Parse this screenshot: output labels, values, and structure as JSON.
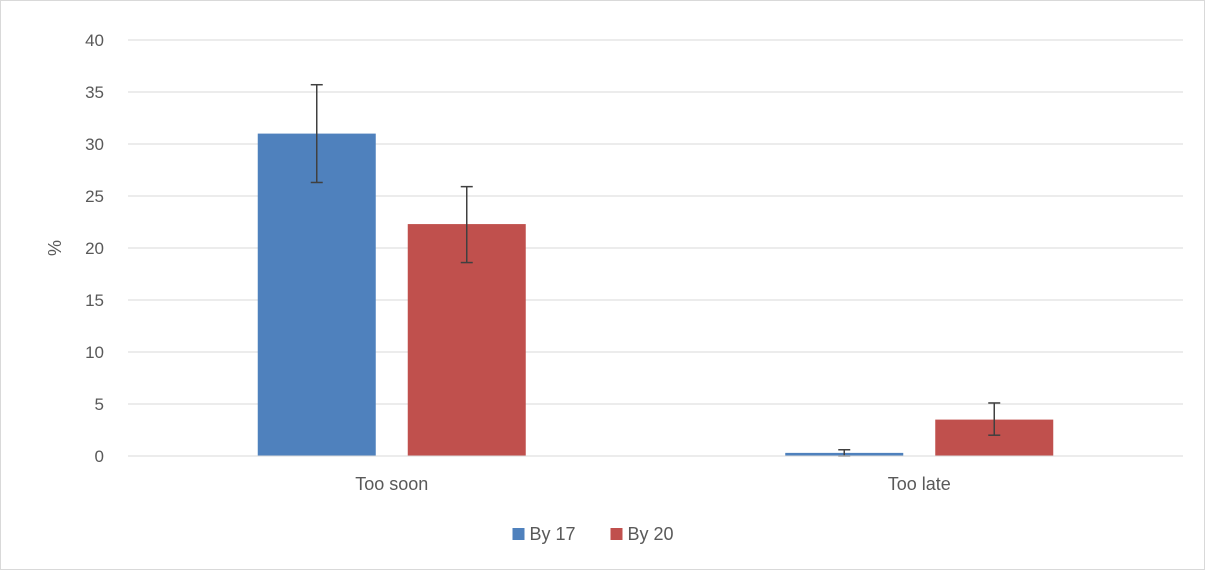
{
  "chart_data": {
    "type": "bar",
    "title": "",
    "xlabel": "",
    "ylabel": "%",
    "ylim": [
      0,
      40
    ],
    "yticks": [
      0,
      5,
      10,
      15,
      20,
      25,
      30,
      35,
      40
    ],
    "grid": true,
    "legend_position": "bottom",
    "categories": [
      "Too soon",
      "Too late"
    ],
    "series": [
      {
        "name": "By 17",
        "color": "#4f81bd",
        "values": [
          31.0,
          0.3
        ],
        "error_low": [
          26.3,
          0.0
        ],
        "error_high": [
          35.7,
          0.6
        ]
      },
      {
        "name": "By 20",
        "color": "#c0504d",
        "values": [
          22.3,
          3.5
        ],
        "error_low": [
          18.6,
          2.0
        ],
        "error_high": [
          25.9,
          5.1
        ]
      }
    ]
  }
}
